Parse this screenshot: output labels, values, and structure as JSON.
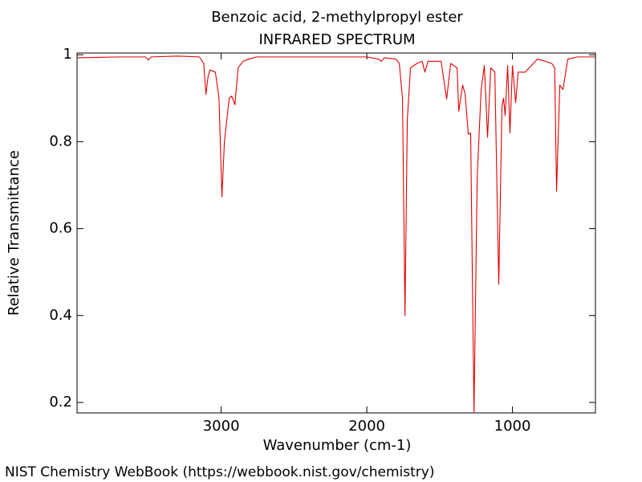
{
  "chart_data": {
    "type": "line",
    "title": "Benzoic acid, 2-methylpropyl ester",
    "subtitle": "INFRARED SPECTRUM",
    "x_label": "Wavenumber (cm-1)",
    "y_label": "Relative Transmittance",
    "footer": "NIST Chemistry WebBook (https://webbook.nist.gov/chemistry)",
    "xlim": [
      3990,
      430
    ],
    "ylim": [
      0.176,
      1.004
    ],
    "xticks": [
      3000,
      2000,
      1000
    ],
    "yticks": [
      1,
      0.8,
      0.6,
      0.4,
      0.2
    ],
    "x": [
      3990,
      3700,
      3520,
      3500,
      3480,
      3300,
      3150,
      3120,
      3105,
      3090,
      3077,
      3040,
      3015,
      2995,
      2978,
      2945,
      2928,
      2906,
      2884,
      2850,
      2813,
      2758,
      2000,
      1920,
      1900,
      1880,
      1800,
      1777,
      1755,
      1738,
      1722,
      1700,
      1656,
      1620,
      1601,
      1580,
      1545,
      1490,
      1452,
      1424,
      1380,
      1369,
      1342,
      1325,
      1303,
      1287,
      1264,
      1242,
      1215,
      1193,
      1171,
      1149,
      1121,
      1094,
      1072,
      1061,
      1050,
      1033,
      1017,
      1000,
      978,
      961,
      912,
      829,
      774,
      730,
      710,
      697,
      675,
      653,
      620,
      554,
      433
    ],
    "series": [
      {
        "name": "Relative Transmittance",
        "color": "#e00000",
        "values": [
          0.993,
          0.995,
          0.995,
          0.988,
          0.995,
          0.997,
          0.995,
          0.98,
          0.909,
          0.95,
          0.965,
          0.96,
          0.9,
          0.673,
          0.8,
          0.9,
          0.905,
          0.885,
          0.97,
          0.985,
          0.99,
          0.995,
          0.995,
          0.99,
          0.985,
          0.993,
          0.99,
          0.98,
          0.9,
          0.4,
          0.85,
          0.97,
          0.98,
          0.985,
          0.96,
          0.985,
          0.985,
          0.985,
          0.898,
          0.98,
          0.97,
          0.87,
          0.93,
          0.91,
          0.817,
          0.82,
          0.176,
          0.72,
          0.92,
          0.975,
          0.81,
          0.97,
          0.96,
          0.472,
          0.88,
          0.9,
          0.86,
          0.975,
          0.82,
          0.975,
          0.89,
          0.96,
          0.96,
          0.99,
          0.985,
          0.98,
          0.97,
          0.686,
          0.93,
          0.92,
          0.99,
          0.995,
          0.995
        ]
      }
    ]
  }
}
